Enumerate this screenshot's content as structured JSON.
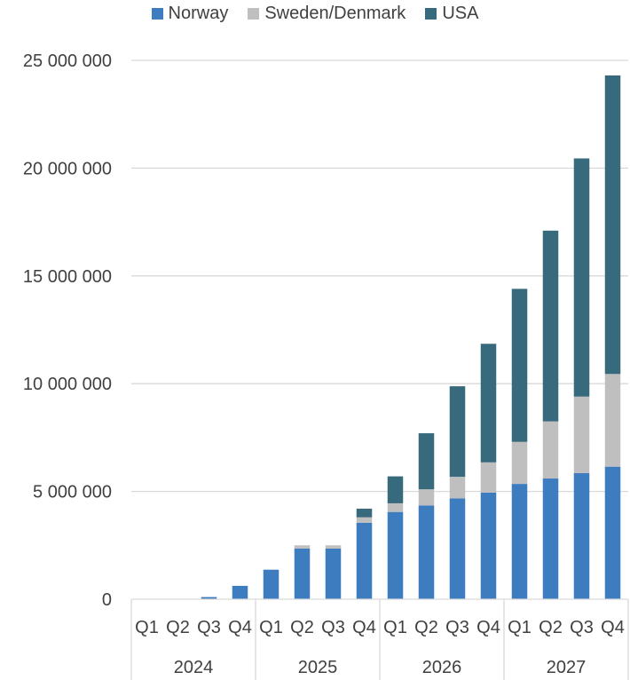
{
  "chart_data": {
    "type": "bar",
    "stacked": true,
    "title": "",
    "xlabel": "",
    "ylabel": "",
    "ylim": [
      0,
      25000000
    ],
    "yticks": [
      "0",
      "5 000 000",
      "10 000 000",
      "15 000 000",
      "20 000 000",
      "25 000 000"
    ],
    "grid": "horizontal",
    "legend_position": "top",
    "categories": [
      "Q1",
      "Q2",
      "Q3",
      "Q4",
      "Q1",
      "Q2",
      "Q3",
      "Q4",
      "Q1",
      "Q2",
      "Q3",
      "Q4",
      "Q1",
      "Q2",
      "Q3",
      "Q4"
    ],
    "groups": [
      {
        "label": "2024",
        "quarters": 4
      },
      {
        "label": "2025",
        "quarters": 4
      },
      {
        "label": "2026",
        "quarters": 4
      },
      {
        "label": "2027",
        "quarters": 4
      }
    ],
    "series": [
      {
        "name": "Norway",
        "color": "#3E7CC0",
        "values": [
          0,
          0,
          100000,
          620000,
          1370000,
          2350000,
          2350000,
          3550000,
          4050000,
          4350000,
          4680000,
          4950000,
          5350000,
          5600000,
          5850000,
          6150000
        ]
      },
      {
        "name": "Sweden/Denmark",
        "color": "#BFBFBF",
        "values": [
          0,
          0,
          0,
          0,
          0,
          150000,
          150000,
          250000,
          400000,
          750000,
          1000000,
          1400000,
          1950000,
          2650000,
          3550000,
          4300000
        ]
      },
      {
        "name": "USA",
        "color": "#376A7C",
        "values": [
          0,
          0,
          0,
          0,
          0,
          0,
          0,
          400000,
          1250000,
          2600000,
          4200000,
          5500000,
          7100000,
          8850000,
          11050000,
          13850000
        ]
      }
    ]
  }
}
